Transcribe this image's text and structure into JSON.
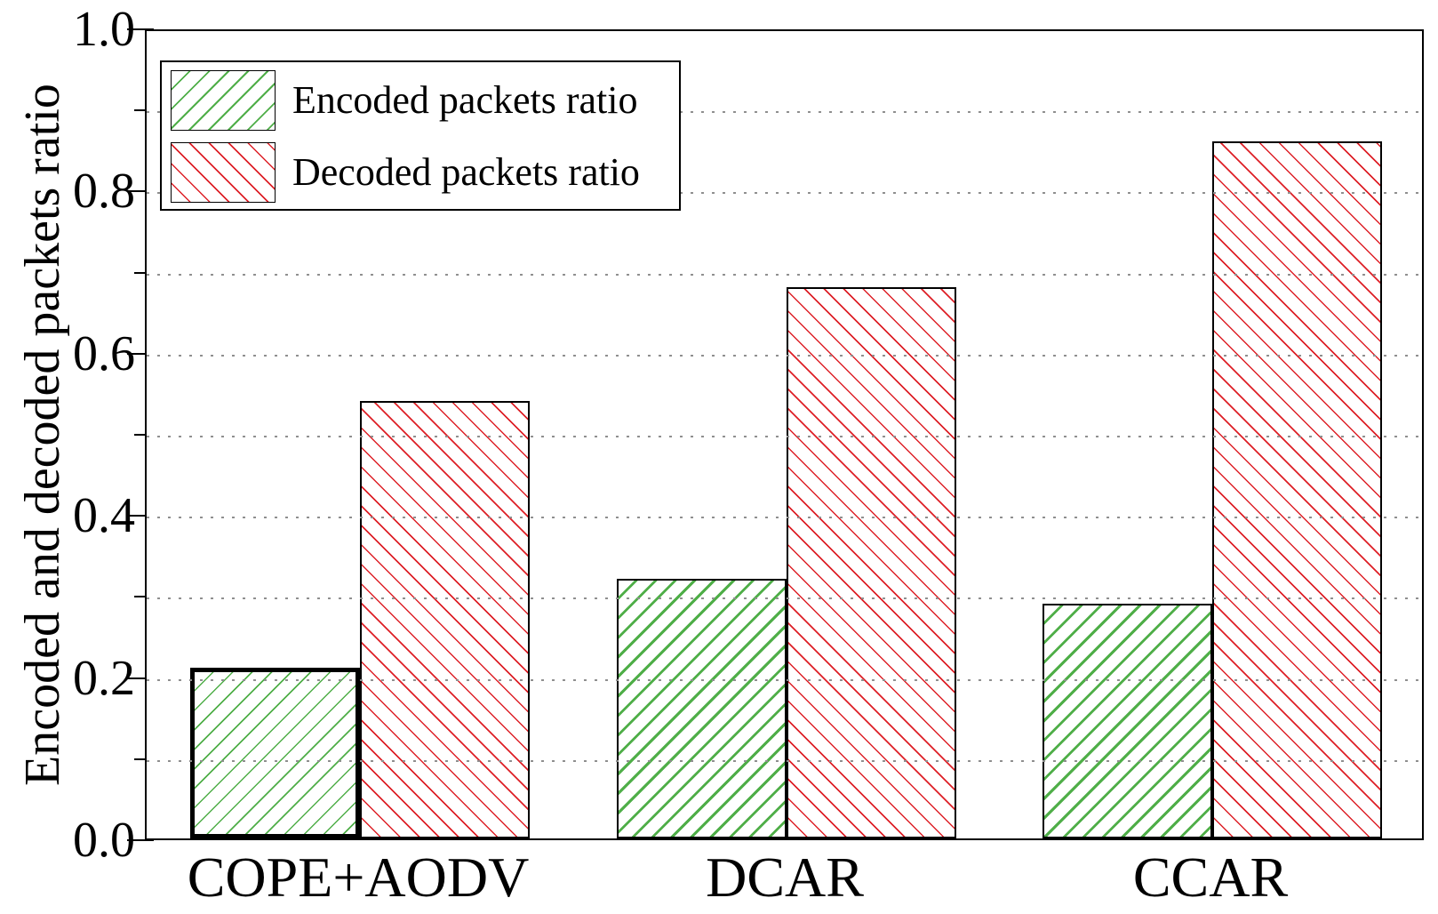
{
  "figure": {
    "background": "#ffffff",
    "axis_color": "#000000",
    "text_color": "#000000"
  },
  "chart_data": {
    "type": "bar",
    "title": "",
    "xlabel": "",
    "ylabel": "Encoded and decoded packets ratio",
    "categories": [
      "COPE+AODV",
      "DCAR",
      "CCAR"
    ],
    "series": [
      {
        "name": "Encoded packets ratio",
        "color": "#4fae48",
        "hatch": "/",
        "values": [
          0.21,
          0.32,
          0.29
        ]
      },
      {
        "name": "Decoded packets ratio",
        "color": "#dd2027",
        "hatch": "\\",
        "values": [
          0.54,
          0.68,
          0.86
        ]
      }
    ],
    "ylim": [
      0.0,
      1.0
    ],
    "ytick_labels": [
      "0.0",
      "0.2",
      "0.4",
      "0.6",
      "0.8",
      "1.0"
    ],
    "yticks_major": [
      0.0,
      0.2,
      0.4,
      0.6,
      0.8,
      1.0
    ],
    "yticks_minor": [
      0.1,
      0.3,
      0.5,
      0.7,
      0.9
    ],
    "grid": {
      "horizontal_every": 0.1,
      "style": "dotted",
      "color": "#8f8f8f",
      "drawn_on_top_of_bars": true
    },
    "legend": {
      "position": "top-left",
      "entries": [
        "Encoded packets ratio",
        "Decoded packets ratio"
      ]
    },
    "emphasized_bar": {
      "category": "COPE+AODV",
      "series": "Encoded packets ratio",
      "note": "thick black border, thin hatch lines"
    }
  }
}
